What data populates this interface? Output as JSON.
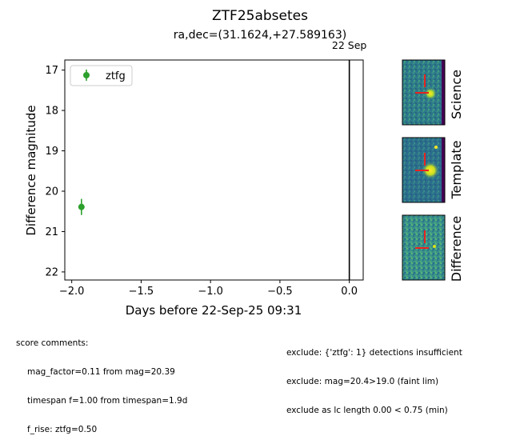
{
  "header": {
    "title": "ZTF25absetes",
    "subtitle": "ra,dec=(31.1624,+27.589163)"
  },
  "chart_data": {
    "type": "scatter",
    "xlabel": "Days before 22-Sep-25 09:31",
    "ylabel": "Difference magnitude",
    "xlim": [
      -2.05,
      0.1
    ],
    "ylim": [
      22.2,
      16.75
    ],
    "y_inverted": true,
    "x_ticks": [
      -2.0,
      -1.5,
      -1.0,
      -0.5,
      0.0
    ],
    "x_tick_labels": [
      "−2.0",
      "−1.5",
      "−1.0",
      "−0.5",
      "0.0"
    ],
    "y_ticks": [
      17,
      18,
      19,
      20,
      21,
      22
    ],
    "y_tick_labels": [
      "17",
      "18",
      "19",
      "20",
      "21",
      "22"
    ],
    "legend_position": "upper-left",
    "series": [
      {
        "name": "ztfg",
        "color": "#2ca02c",
        "points": [
          {
            "x": -1.93,
            "y": 20.39,
            "yerr": 0.2
          }
        ]
      }
    ],
    "vertical_line": {
      "x": 0.0,
      "label": "22 Sep",
      "color": "#000000"
    }
  },
  "thumbnails": [
    {
      "label": "Science"
    },
    {
      "label": "Template"
    },
    {
      "label": "Difference"
    }
  ],
  "comments": {
    "header": "score comments:",
    "left": [
      "mag_factor=0.11 from mag=20.39",
      "timespan f=1.00 from timespan=1.9d",
      "f_rise: ztfg=0.50"
    ],
    "right": [
      "exclude: {'ztfg': 1} detections insufficient",
      "exclude: mag=20.4>19.0 (faint lim)",
      "exclude as lc length 0.00 < 0.75 (min)"
    ]
  }
}
